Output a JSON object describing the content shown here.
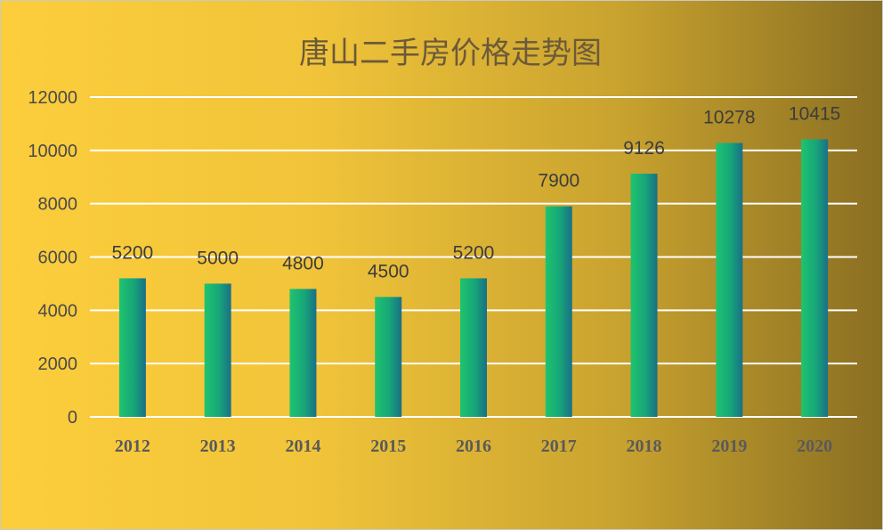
{
  "chart_data": {
    "type": "bar",
    "title": "唐山二手房价格走势图",
    "categories": [
      "2012",
      "2013",
      "2014",
      "2015",
      "2016",
      "2017",
      "2018",
      "2019",
      "2020"
    ],
    "values": [
      5200,
      5000,
      4800,
      4500,
      5200,
      7900,
      9126,
      10278,
      10415
    ],
    "ylim": [
      0,
      12000
    ],
    "yticks": [
      0,
      2000,
      4000,
      6000,
      8000,
      10000,
      12000
    ],
    "grid": true,
    "legend": "none",
    "bar_color_left": "#1ec46e",
    "bar_color_right": "#1a6f86",
    "background_left": "#fcce3c",
    "background_right": "#8a6f22"
  }
}
